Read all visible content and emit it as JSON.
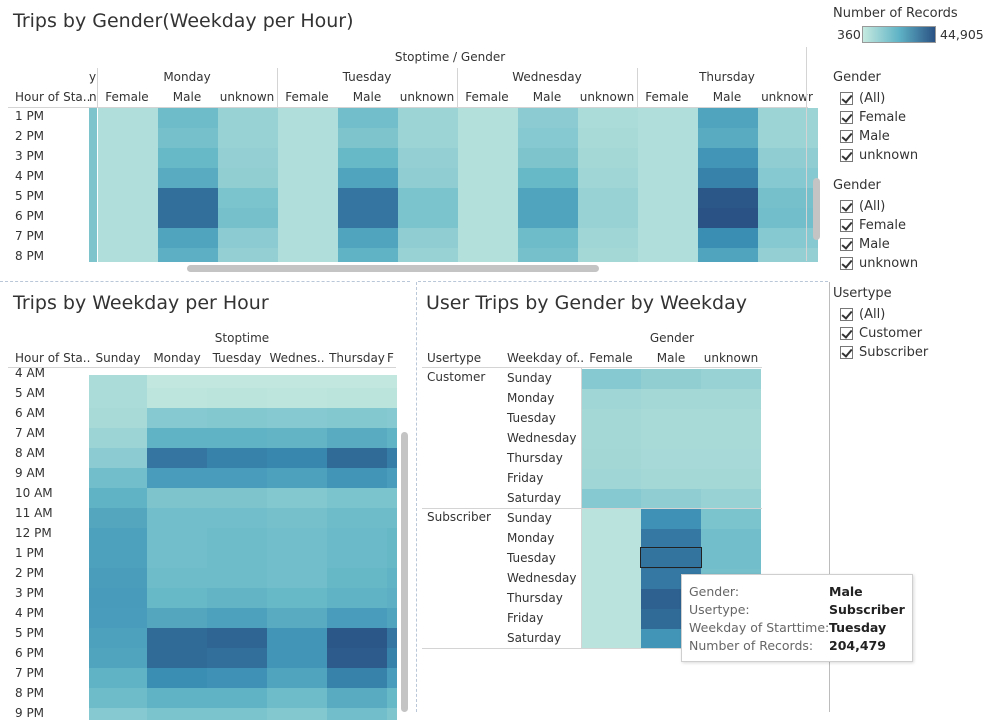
{
  "colors": {
    "low": "#b8e2d8",
    "high": "#2a5284"
  },
  "legend": {
    "title": "Number of Records",
    "min": "360",
    "max": "44,905"
  },
  "filters": {
    "gender1": {
      "title": "Gender",
      "items": [
        "(All)",
        "Female",
        "Male",
        "unknown"
      ]
    },
    "gender2": {
      "title": "Gender",
      "items": [
        "(All)",
        "Female",
        "Male",
        "unknown"
      ]
    },
    "usertype": {
      "title": "Usertype",
      "items": [
        "(All)",
        "Customer",
        "Subscriber"
      ]
    }
  },
  "sheet1": {
    "title": "Trips by Gender(Weekday per Hour)",
    "top_header": "Stoptime / Gender",
    "row_header": "Hour of Sta..",
    "partial_day": "y",
    "partial_gender": "n",
    "days": [
      "Monday",
      "Tuesday",
      "Wednesday",
      "Thursday"
    ],
    "genders": [
      "Female",
      "Male",
      "unknown",
      "Female",
      "Male",
      "unknown",
      "Female",
      "Male",
      "unknown",
      "Female",
      "Male",
      "unknowr"
    ],
    "rows": [
      "1 PM",
      "2 PM",
      "3 PM",
      "4 PM",
      "5 PM",
      "6 PM",
      "7 PM",
      "8 PM"
    ]
  },
  "sheet2": {
    "title": "Trips by Weekday per Hour",
    "top_header": "Stoptime",
    "row_header": "Hour of Sta..",
    "columns": [
      "Sunday",
      "Monday",
      "Tuesday",
      "Wednes..",
      "Thursday",
      "F"
    ],
    "rows": [
      "4 AM",
      "5 AM",
      "6 AM",
      "7 AM",
      "8 AM",
      "9 AM",
      "10 AM",
      "11 AM",
      "12 PM",
      "1 PM",
      "2 PM",
      "3 PM",
      "4 PM",
      "5 PM",
      "6 PM",
      "7 PM",
      "8 PM",
      "9 PM"
    ]
  },
  "sheet3": {
    "title": "User Trips by Gender by Weekday",
    "top_header": "Gender",
    "col_usertype": "Usertype",
    "col_weekday": "Weekday of..",
    "genders": [
      "Female",
      "Male",
      "unknown"
    ],
    "groups": [
      {
        "name": "Customer",
        "days": [
          "Sunday",
          "Monday",
          "Tuesday",
          "Wednesday",
          "Thursday",
          "Friday",
          "Saturday"
        ]
      },
      {
        "name": "Subscriber",
        "days": [
          "Sunday",
          "Monday",
          "Tuesday",
          "Wednesday",
          "Thursday",
          "Friday",
          "Saturday"
        ]
      }
    ]
  },
  "tooltip": {
    "rows": [
      {
        "key": "Gender:",
        "value": "Male"
      },
      {
        "key": "Usertype:",
        "value": "Subscriber"
      },
      {
        "key": "Weekday of Starttime:",
        "value": "Tuesday"
      },
      {
        "key": "Number of Records:",
        "value": "204,479"
      }
    ]
  }
}
